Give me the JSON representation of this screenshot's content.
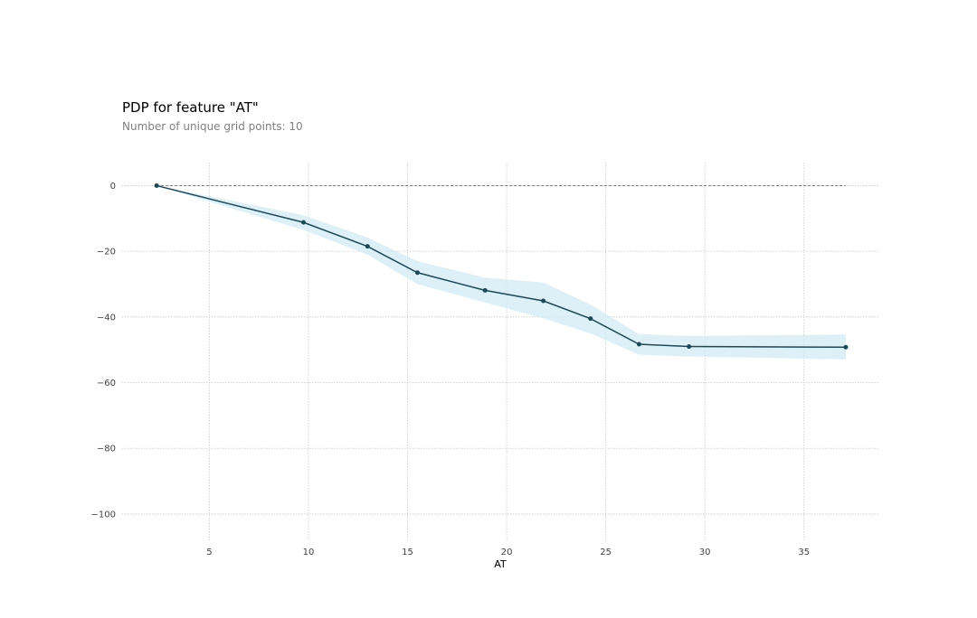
{
  "chart_data": {
    "type": "line",
    "title": "PDP for feature \"AT\"",
    "subtitle": "Number of unique grid points: 10",
    "xlabel": "AT",
    "ylabel": "",
    "xlim": [
      0.6,
      38.8
    ],
    "ylim": [
      -108,
      7
    ],
    "xticks": [
      5,
      10,
      15,
      20,
      25,
      30,
      35
    ],
    "yticks": [
      0,
      -20,
      -40,
      -60,
      -80,
      -100
    ],
    "xtick_labels": [
      "5",
      "10",
      "15",
      "20",
      "25",
      "30",
      "35"
    ],
    "ytick_labels": [
      "0",
      "−20",
      "−40",
      "−60",
      "−80",
      "−100"
    ],
    "grid": true,
    "x": [
      2.34,
      9.75,
      12.98,
      15.5,
      18.91,
      21.85,
      24.23,
      26.68,
      29.2,
      37.11
    ],
    "series": [
      {
        "values": [
          0,
          -11.2,
          -18.5,
          -26.5,
          -31.9,
          -35.1,
          -40.5,
          -48.3,
          -49.0,
          -49.2
        ]
      }
    ],
    "band_upper": [
      0,
      -9.0,
      -15.8,
      -23.0,
      -28.0,
      -29.5,
      -36.2,
      -45.2,
      -45.8,
      -45.3
    ],
    "band_lower": [
      0,
      -13.5,
      -21.0,
      -30.0,
      -35.6,
      -40.4,
      -45.0,
      -51.5,
      -52.0,
      -52.9
    ],
    "reference_line": 0,
    "colors": {
      "line": "#1a4a57",
      "band": "#d5ecf5",
      "reference": "#e05a5a",
      "grid": "#c8c8c8"
    }
  }
}
